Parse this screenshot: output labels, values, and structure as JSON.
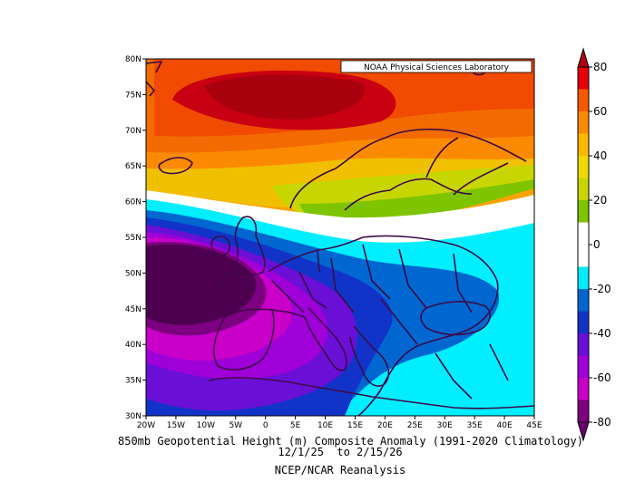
{
  "credit": "NOAA Physical Sciences Laboratory",
  "title_line1": "850mb Geopotential Height (m) Composite Anomaly (1991-2020 Climatology)",
  "title_line2": "12/1/25  to 2/15/26",
  "title_line3": "NCEP/NCAR Reanalysis",
  "lat_ticks": [
    "80N",
    "75N",
    "70N",
    "65N",
    "60N",
    "55N",
    "50N",
    "45N",
    "40N",
    "35N",
    "30N"
  ],
  "lon_ticks": [
    "20W",
    "15W",
    "10W",
    "5W",
    "0",
    "5E",
    "10E",
    "15E",
    "20E",
    "25E",
    "30E",
    "35E",
    "40E",
    "45E"
  ],
  "colorbar": {
    "labels": [
      "80",
      "60",
      "40",
      "20",
      "0",
      "-20",
      "-40",
      "-60",
      "-80"
    ],
    "colors": [
      "#e8000b",
      "#f35a00",
      "#fb8a00",
      "#ffb700",
      "#efd900",
      "#c7d600",
      "#7fc400",
      "#ffffff",
      "#ffffff",
      "#00eeff",
      "#0067d1",
      "#1233c8",
      "#6a0fd6",
      "#9f00d8",
      "#c800c8",
      "#7c0080"
    ]
  }
}
